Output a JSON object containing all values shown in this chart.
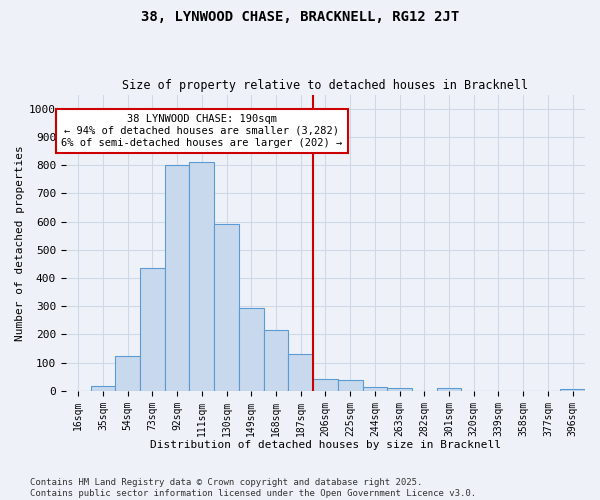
{
  "title_line1": "38, LYNWOOD CHASE, BRACKNELL, RG12 2JT",
  "title_line2": "Size of property relative to detached houses in Bracknell",
  "xlabel": "Distribution of detached houses by size in Bracknell",
  "ylabel": "Number of detached properties",
  "bin_labels": [
    "16sqm",
    "35sqm",
    "54sqm",
    "73sqm",
    "92sqm",
    "111sqm",
    "130sqm",
    "149sqm",
    "168sqm",
    "187sqm",
    "206sqm",
    "225sqm",
    "244sqm",
    "263sqm",
    "282sqm",
    "301sqm",
    "320sqm",
    "339sqm",
    "358sqm",
    "377sqm",
    "396sqm"
  ],
  "bar_values": [
    0,
    18,
    122,
    435,
    800,
    810,
    593,
    293,
    215,
    130,
    42,
    40,
    13,
    10,
    0,
    10,
    0,
    0,
    0,
    0,
    7
  ],
  "bar_color": "#c8d9ed",
  "bar_edge_color": "#5b9bd5",
  "grid_color": "#d0d8e8",
  "vline_x_index": 9,
  "vline_color": "#cc0000",
  "annotation_text": "38 LYNWOOD CHASE: 190sqm\n← 94% of detached houses are smaller (3,282)\n6% of semi-detached houses are larger (202) →",
  "annotation_box_color": "white",
  "annotation_box_edge": "#cc0000",
  "ylim": [
    0,
    1050
  ],
  "yticks": [
    0,
    100,
    200,
    300,
    400,
    500,
    600,
    700,
    800,
    900,
    1000
  ],
  "footer_line1": "Contains HM Land Registry data © Crown copyright and database right 2025.",
  "footer_line2": "Contains public sector information licensed under the Open Government Licence v3.0.",
  "bg_color": "#eef2f8",
  "plot_bg_color": "#eef2f8"
}
